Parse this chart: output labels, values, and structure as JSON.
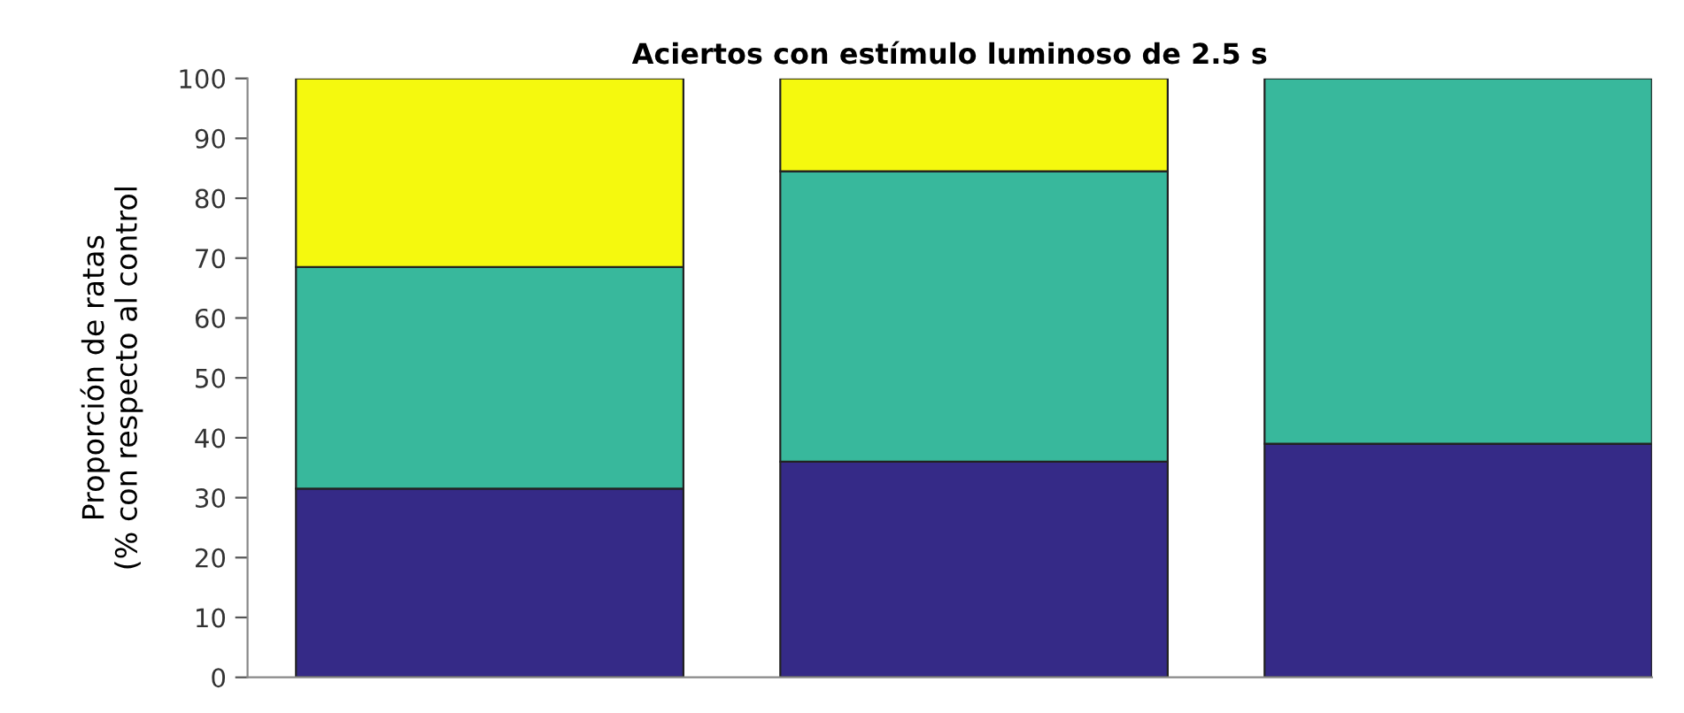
{
  "chart_data": {
    "type": "bar",
    "title": "Aciertos con estímulo luminoso de 2.5 s",
    "ylabel": "Proporción de ratas\n(% con respecto al control",
    "categories": [
      null,
      null,
      null
    ],
    "stacked": true,
    "ylim": [
      0,
      100
    ],
    "yticks": [
      0,
      10,
      20,
      30,
      40,
      50,
      60,
      70,
      80,
      90,
      100
    ],
    "grid": false,
    "legend": false,
    "series": [
      {
        "color": "#352a87",
        "values": [
          31.5,
          36,
          39
        ]
      },
      {
        "color": "#38b89c",
        "values": [
          37,
          48.5,
          61
        ]
      },
      {
        "color": "#f5f90e",
        "values": [
          31.5,
          15.5,
          null
        ]
      }
    ]
  }
}
